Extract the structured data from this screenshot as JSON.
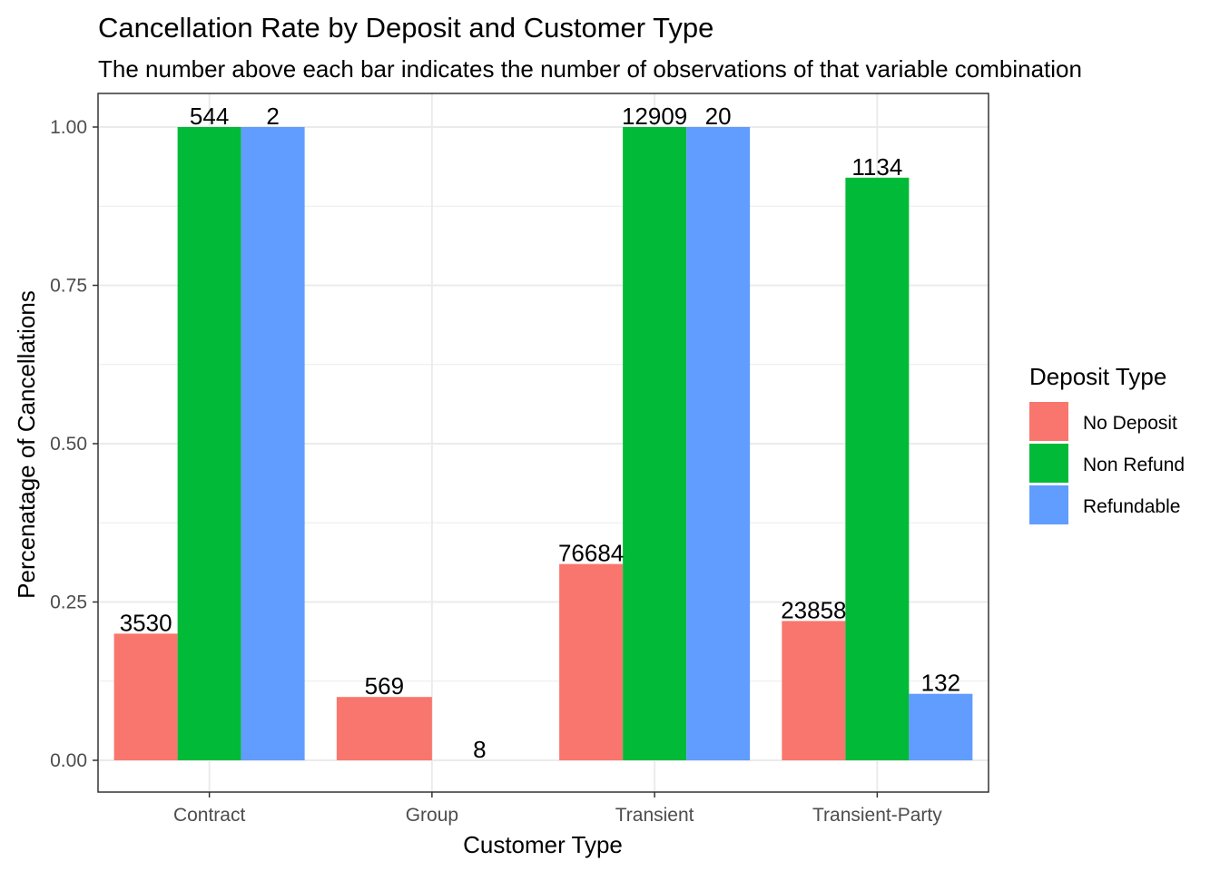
{
  "chart_data": {
    "type": "bar",
    "title": "Cancellation Rate by Deposit and Customer Type",
    "subtitle": "The number above each bar indicates the number of observations of that variable combination",
    "xlabel": "Customer Type",
    "ylabel": "Percenatage of Cancellations",
    "categories": [
      "Contract",
      "Group",
      "Transient",
      "Transient-Party"
    ],
    "ylim": [
      -0.05,
      1.05
    ],
    "yticks": [
      0.0,
      0.25,
      0.5,
      0.75,
      1.0
    ],
    "ytick_labels": [
      "0.00",
      "0.25",
      "0.50",
      "0.75",
      "1.00"
    ],
    "grid": true,
    "legend": {
      "title": "Deposit Type",
      "position": "right"
    },
    "series": [
      {
        "name": "No Deposit",
        "color": "#F8766D"
      },
      {
        "name": "Non Refund",
        "color": "#00BA38"
      },
      {
        "name": "Refundable",
        "color": "#619CFF"
      }
    ],
    "groups": [
      {
        "category": "Contract",
        "bars": [
          {
            "series": "No Deposit",
            "value": 0.2,
            "count": "3530"
          },
          {
            "series": "Non Refund",
            "value": 1.0,
            "count": "544"
          },
          {
            "series": "Refundable",
            "value": 1.0,
            "count": "2"
          }
        ]
      },
      {
        "category": "Group",
        "bars": [
          {
            "series": "No Deposit",
            "value": 0.1,
            "count": "569"
          },
          {
            "series": "Refundable",
            "value": 0.0,
            "count": "8"
          }
        ]
      },
      {
        "category": "Transient",
        "bars": [
          {
            "series": "No Deposit",
            "value": 0.31,
            "count": "76684"
          },
          {
            "series": "Non Refund",
            "value": 1.0,
            "count": "12909"
          },
          {
            "series": "Refundable",
            "value": 1.0,
            "count": "20"
          }
        ]
      },
      {
        "category": "Transient-Party",
        "bars": [
          {
            "series": "No Deposit",
            "value": 0.22,
            "count": "23858"
          },
          {
            "series": "Non Refund",
            "value": 0.92,
            "count": "1134"
          },
          {
            "series": "Refundable",
            "value": 0.105,
            "count": "132"
          }
        ]
      }
    ]
  }
}
